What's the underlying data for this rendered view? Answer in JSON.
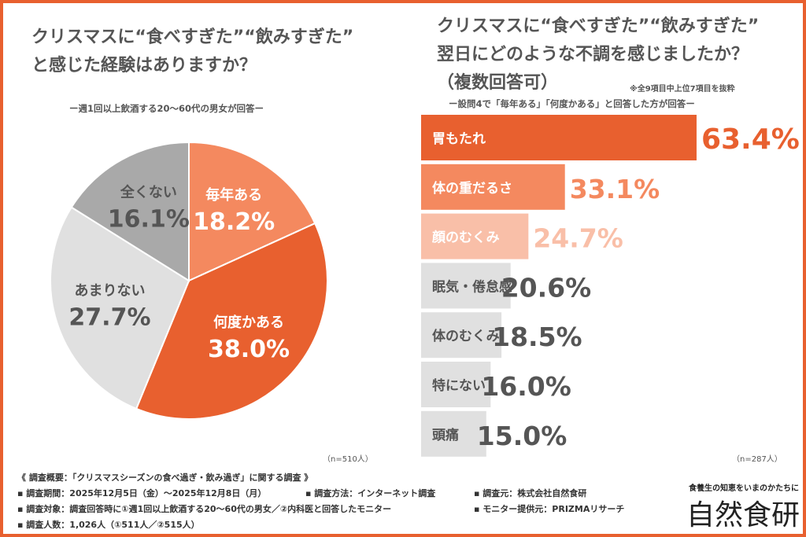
{
  "left": {
    "title_line1": "クリスマスに“食べすぎた”“飲みすぎた”",
    "title_line2": "と感じた経験はありますか？",
    "subtitle": "ー週1回以上飲酒する20〜60代の男女が回答ー",
    "n_label": "（n=510人）"
  },
  "right": {
    "title_line1": "クリスマスに“食べすぎた”“飲みすぎた”",
    "title_line2": "翌日にどのような不調を感じましたか？",
    "title_line3": "（複数回答可）",
    "note": "※全9項目中上位7項目を抜粋",
    "subtitle": "ー設問4で「毎年ある」「何度かある」と回答した方が回答ー",
    "n_label": "（n=287人）"
  },
  "chart_data": [
    {
      "type": "pie",
      "unit": "%",
      "categories": [
        "毎年ある",
        "何度かある",
        "あまりない",
        "全くない"
      ],
      "values": [
        18.2,
        38.0,
        27.7,
        16.1
      ],
      "labels": [
        "18.2%",
        "38.0%",
        "27.7%",
        "16.1%"
      ],
      "colors": [
        "#F4895F",
        "#E8602F",
        "#E0E0E0",
        "#A9A9A9"
      ],
      "label_colors": [
        "#ffffff",
        "#ffffff",
        "#555555",
        "#555555"
      ]
    },
    {
      "type": "bar",
      "orientation": "horizontal",
      "unit": "%",
      "categories": [
        "胃もたれ",
        "体の重だるさ",
        "顔のむくみ",
        "眠気・倦怠感",
        "体のむくみ",
        "特にない",
        "頭痛"
      ],
      "values": [
        63.4,
        33.1,
        24.7,
        20.6,
        18.5,
        16.0,
        15.0
      ],
      "labels": [
        "63.4%",
        "33.1%",
        "24.7%",
        "20.6%",
        "18.5%",
        "16.0%",
        "15.0%"
      ],
      "colors": [
        "#E8602F",
        "#F4895F",
        "#F9BFA8",
        "#E0E0E0",
        "#E0E0E0",
        "#E0E0E0",
        "#E0E0E0"
      ],
      "value_colors": [
        "#E8602F",
        "#F4895F",
        "#F9BFA8",
        "#555555",
        "#555555",
        "#555555",
        "#555555"
      ],
      "category_label_colors": [
        "#ffffff",
        "#ffffff",
        "#ffffff",
        "#555555",
        "#555555",
        "#555555",
        "#555555"
      ]
    }
  ],
  "footer": {
    "overview": "《 調査概要：「クリスマスシーズンの食べ過ぎ・飲み過ぎ」に関する調査 》",
    "period": "▪ 調査期間：2025年12月5日（金）〜2025年12月8日（月）",
    "method": "▪ 調査方法：インターネット調査",
    "source": "▪ 調査元：株式会社自然食研",
    "target": "▪ 調査対象：調査回答時に①週1回以上飲酒する20〜60代の男女／②内科医と回答したモニター",
    "provider": "▪ モニター提供元：PRIZMAリサーチ",
    "count": "▪ 調査人数：1,026人（①511人／②515人）"
  },
  "logo": {
    "tagline": "食養生の知恵をいまのかたちに",
    "name": "自然食研"
  }
}
